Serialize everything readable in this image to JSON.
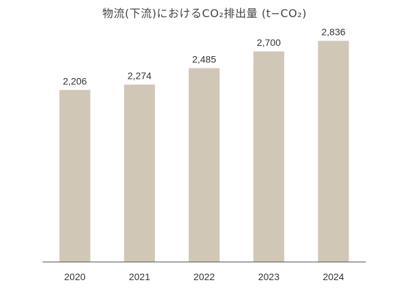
{
  "chart_data": {
    "type": "bar",
    "title": "物流(下流)におけるCO₂排出量 (t−CO₂)",
    "xlabel": "",
    "ylabel": "",
    "categories": [
      "2020",
      "2021",
      "2022",
      "2023",
      "2024"
    ],
    "values": [
      2206,
      2274,
      2485,
      2700,
      2836
    ],
    "value_labels": [
      "2,206",
      "2,274",
      "2,485",
      "2,700",
      "2,836"
    ],
    "ylim": [
      0,
      3000
    ],
    "grid": false,
    "legend": "none",
    "colors": {
      "bar": "#d1c7b7",
      "axis": "#555555",
      "text": "#333333"
    }
  }
}
